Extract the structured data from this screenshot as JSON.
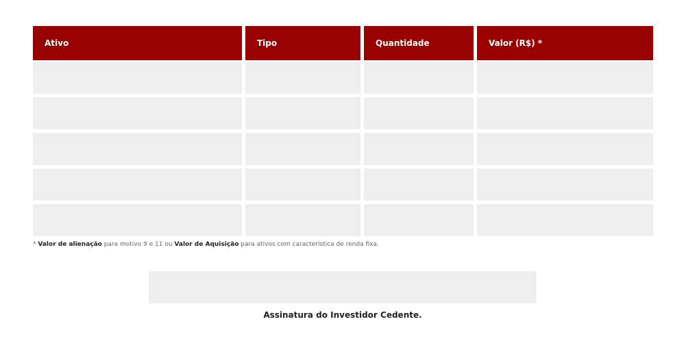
{
  "table": {
    "headers": [
      "Ativo",
      "Tipo",
      "Quantidade",
      "Valor (R$) *"
    ],
    "rows": [
      [
        "",
        "",
        "",
        ""
      ],
      [
        "",
        "",
        "",
        ""
      ],
      [
        "",
        "",
        "",
        ""
      ],
      [
        "",
        "",
        "",
        ""
      ],
      [
        "",
        "",
        "",
        ""
      ]
    ]
  },
  "note": {
    "prefix": "* ",
    "bold1": "Valor de alienação",
    "text1": " para motivo 9 e 11 ou ",
    "bold2": "Valor de Aquisição",
    "text2": " para ativos com característica de renda fixa."
  },
  "signature": {
    "label": "Assinatura do Investidor Cedente."
  },
  "colors": {
    "header": "#990000",
    "cell": "#eeeeee"
  }
}
